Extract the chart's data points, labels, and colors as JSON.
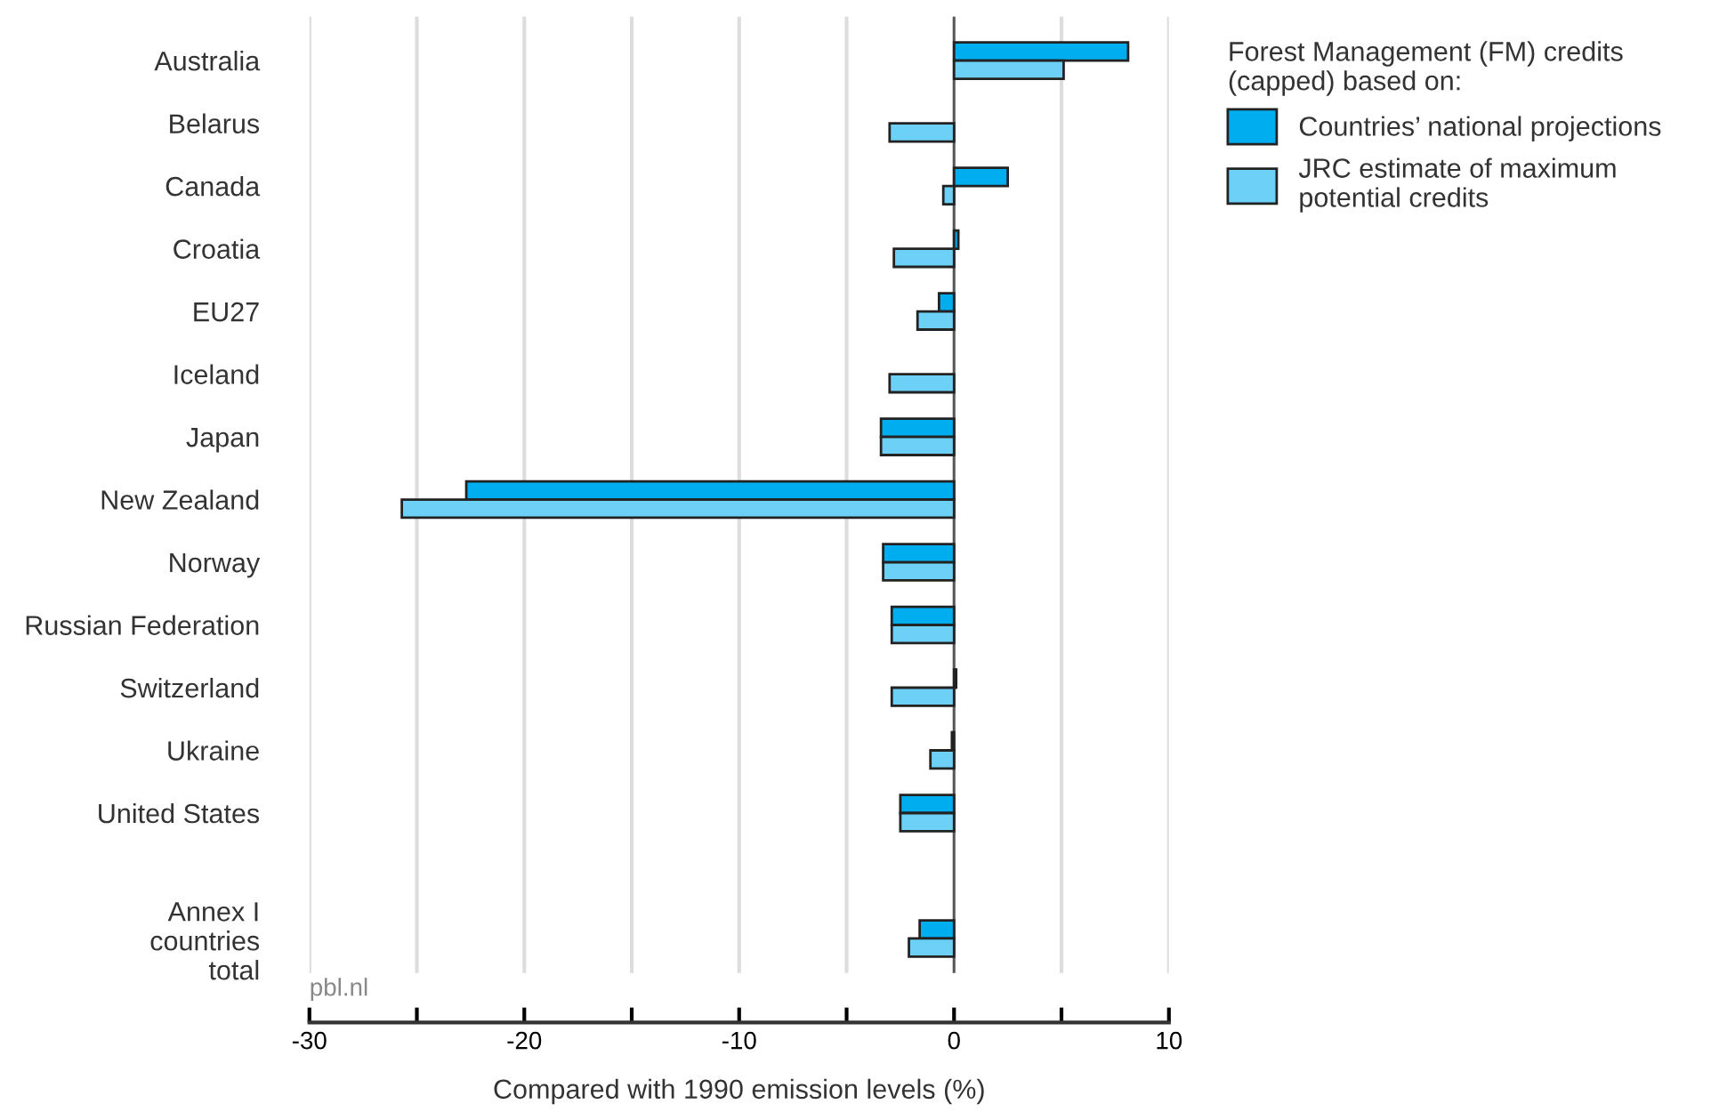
{
  "chart_data": {
    "type": "bar",
    "orientation": "horizontal",
    "categories": [
      "Australia",
      "Belarus",
      "Canada",
      "Croatia",
      "EU27",
      "Iceland",
      "Japan",
      "New Zealand",
      "Norway",
      "Russian Federation",
      "Switzerland",
      "Ukraine",
      "United States",
      null,
      "Annex I\ncountries\ntotal"
    ],
    "series": [
      {
        "name": "Countries’ national projections",
        "color": "#00adef",
        "values": [
          8.1,
          null,
          2.5,
          0.2,
          -0.7,
          null,
          -3.4,
          -22.7,
          -3.3,
          -2.9,
          0.1,
          -0.1,
          -2.5,
          null,
          -1.6
        ]
      },
      {
        "name": "JRC estimate of maximum\npotential credits",
        "color": "#6dd0f7",
        "values": [
          5.1,
          -3.0,
          -0.5,
          -2.8,
          -1.7,
          -3.0,
          -3.4,
          -25.7,
          -3.3,
          -2.9,
          -2.9,
          -1.1,
          -2.5,
          null,
          -2.1
        ]
      }
    ],
    "xlim": [
      -30,
      10
    ],
    "xticks": [
      -30,
      {
        "value": -25,
        "label": null
      },
      -20,
      {
        "value": -15,
        "label": null
      },
      -10,
      {
        "value": -5,
        "label": null
      },
      0,
      {
        "value": 5,
        "label": null
      },
      10
    ],
    "xlabel": "Compared with 1990 emission levels (%)",
    "legend_title": "Forest Management (FM) credits\n(capped) based on:",
    "legend": "top right",
    "grid": "x",
    "ref_lines": [
      {
        "axis": "x",
        "value": 0,
        "label": null,
        "color": "#555555"
      }
    ],
    "annotations": [
      "pbl.nl"
    ]
  }
}
